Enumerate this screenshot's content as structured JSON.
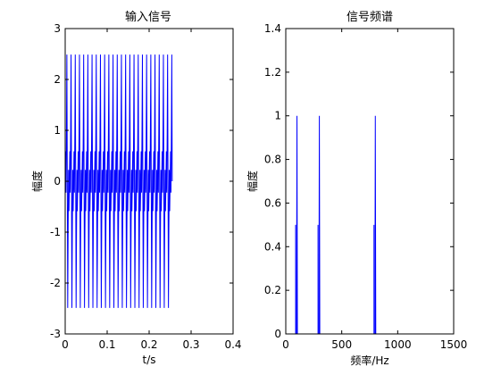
{
  "chart_data": [
    {
      "type": "line",
      "title": "输入信号",
      "xlabel": "t/s",
      "ylabel": "幅度",
      "xlim": [
        0,
        0.4
      ],
      "ylim": [
        -3,
        3
      ],
      "xticks": [
        0,
        0.1,
        0.2,
        0.3,
        0.4
      ],
      "xtick_labels": [
        "0",
        "0.1",
        "0.2",
        "0.3",
        "0.4"
      ],
      "yticks": [
        -3,
        -2,
        -1,
        0,
        1,
        2,
        3
      ],
      "ytick_labels": [
        "-3",
        "-2",
        "-1",
        "0",
        "1",
        "2",
        "3"
      ],
      "grid": false,
      "line_color": "#0000ff",
      "signal": {
        "t_start": 0,
        "t_end": 0.255,
        "samples": 256,
        "components": [
          {
            "amplitude": 1,
            "frequency_hz": 100
          },
          {
            "amplitude": 1,
            "frequency_hz": 300
          },
          {
            "amplitude": 1,
            "frequency_hz": 800
          }
        ]
      }
    },
    {
      "type": "line",
      "title": "信号频谱",
      "xlabel": "频率/Hz",
      "ylabel": "幅度",
      "xlim": [
        0,
        1500
      ],
      "ylim": [
        0,
        1.4
      ],
      "xticks": [
        0,
        500,
        1000,
        1500
      ],
      "xtick_labels": [
        "0",
        "500",
        "1000",
        "1500"
      ],
      "yticks": [
        0,
        0.2,
        0.4,
        0.6,
        0.8,
        1.0,
        1.2,
        1.4
      ],
      "ytick_labels": [
        "0",
        "0.2",
        "0.4",
        "0.6",
        "0.8",
        "1",
        "1.2",
        "1.4"
      ],
      "grid": false,
      "line_color": "#0000ff",
      "x": [
        0,
        96,
        100,
        104,
        296,
        300,
        304,
        796,
        800,
        804,
        1000
      ],
      "y": [
        0,
        0,
        1,
        0,
        0,
        1,
        0,
        0,
        1,
        0,
        0
      ],
      "shoulder_value": 0.5,
      "peak_frequencies_hz": [
        100,
        300,
        800
      ]
    }
  ]
}
